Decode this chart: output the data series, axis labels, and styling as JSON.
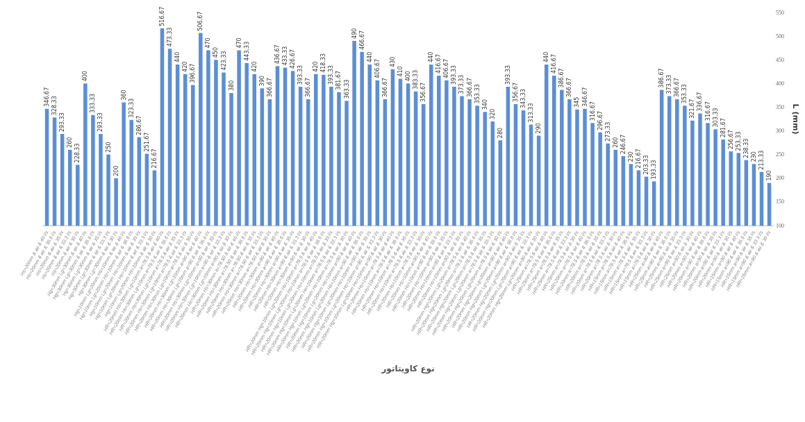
{
  "chart_data": {
    "type": "bar",
    "xlabel": "نوع کاویتاتور",
    "ylabel": "L (mm)",
    "color": "#5b8ed6",
    "ylim": [
      100,
      550
    ],
    "yticks": [
      100,
      150,
      200,
      250,
      300,
      350,
      400,
      450,
      500,
      550
    ],
    "grid": false,
    "data_labels": true,
    "categories": [
      "Hs=20mm & air & 40 l/s",
      "Hs=20mm & air & 36.6 l/s",
      "Hs=20mm & air & 35 l/s",
      "Hs=20mm & air & 33.3 l/s",
      "Hs=20mm & air & 30 l/s",
      "Hg=30mm Lg=30mm & air & 40 l/s",
      "Hg=30mm Lg=30mm & air & 36.6 l/s",
      "Hg=30mm Lg=30mm & air & 35 l/s",
      "Hg=30mm Lg=30mm & air & 33.3 l/s",
      "Hg=30mm Lg=30mm & air & 30 l/s",
      "Hg=10mm Lg=20mm Hs=10mm & air & 40 l/s",
      "Hg=10mm Lg=20mm Hs=10mm & air & 36.6 l/s",
      "Hg=10mm Lg=20mm Hs=10mm & air & 35 l/s",
      "Hg=10mm Lg=20mm Hs=10mm & air & 33.3 l/s",
      "Hg=10mm Lg=20mm Hs=10mm & air & 30 l/s",
      "HR=20mm Hs=30mm Lg=10mm a=78.5 & air & 40 l/s",
      "HR=20mm Hs=30mm Lg=10mm a=78.5 & air & 36.6 l/s",
      "HR=20mm Hs=30mm Lg=10mm a=78.5 & air & 35 l/s",
      "HR=20mm Hs=30mm Lg=10mm a=78.5 & air & 33.3 l/s",
      "HR=20mm Hs=30mm Lg=10mm a=78.5 & air & 30 l/s",
      "HR=20mm Hs=30mm Lg=10mm a=90 & air & 40 l/s",
      "HR=20mm Hs=30mm Lg=10mm a=90 & air & 36.6 l/s",
      "HR=20mm Hs=30mm Lg=10mm a=90 & air & 35 l/s",
      "HR=20mm Hs=30mm Lg=10mm a=90 & air & 33.3 l/s",
      "HR=20mm Hs=30mm Lg=10mm a=90 & air & 30 l/s",
      "HR=20mm Hs=30mm a=78.50 & air & 40 l/s",
      "HR=20mm Hs=30mm a=78.50 & air & 36.6 l/s",
      "HR=20mm Hs=30mm a=78.50 & air & 35 l/s",
      "HR=20mm Hs=30mm a=78.50 & air & 33.3 l/s",
      "HR=20mm Hs=30mm a=78.50 & air & 30 l/s",
      "HR=20mm Hs=30mm a=90 & air & 40 l/s",
      "HR=20mm Hs=30mm a=90 & air & 36.6 l/s",
      "HR=20mm Hs=30mm a=90 & air & 35 l/s",
      "HR=20mm Hs=30mm a=90 & air & 33.3 l/s",
      "HR=20mm Hs=30mm a=90 & air & 30 l/s",
      "HR=20mm Hg=10mm Lg=20mm Hs=10mm a=78.5 & air & 40 l/s",
      "HR=20mm Hg=10mm Lg=20mm Hs=10mm a=78.5 & air & 36.6 l/s",
      "HR=20mm Hg=10mm Lg=20mm Hs=10mm a=78.5 & air & 35 l/s",
      "HR=20mm Hg=10mm Lg=20mm Hs=10mm a=78.5 & air & 33.3 l/s",
      "HR=20mm Hg=10mm Lg=20mm Hs=10mm a=78.5 & air & 30 l/s",
      "HR=20mm Hg=10mm Lg=20mm Hs=10mm a=90 & air & 40 l/s",
      "HR=20mm Hg=10mm Lg=20mm Hs=10mm a=90 & air & 36.6 l/s",
      "HR=20mm Hg=10mm Lg=20mm Hs=10mm a=90 & air & 35 l/s",
      "HR=20mm Hg=10mm Lg=20mm Hs=10mm a=90 & air & 33.3 l/s",
      "HR=20mm Hg=10mm Lg=20mm Hs=10mm a=90 & air & 30 l/s",
      "HR=20mm Hs=10mm a=78.5 & air & 40 l/s",
      "HR=20mm Hs=10mm a=78.5 & air & 36.6 l/s",
      "HR=20mm Hs=10mm a=78.5 & air & 35 l/s",
      "HR=20mm Hs=10mm a=78.5 & air & 33.3 l/s",
      "HR=20mm Hs=10mm a=78.5 & air & 30 l/s",
      "HR=20mm Hs=10mm a=90 & air & 40 l/s",
      "HR=20mm Hs=10mm a=90 & air & 36.6 l/s",
      "HR=20mm Hs=10mm a=90 & air & 35 l/s",
      "HR=20mm Hs=10mm a=90 & air & 33.3 l/s",
      "HR=20mm Hs=10mm a=90 & air & 30 l/s",
      "HR=20mm Hg=20mm Lg=20mm a=78.5 & air & 40 l/s",
      "HR=20mm Hg=20mm Lg=20mm a=78.5 & air & 36.6 l/s",
      "HR=20mm Hg=20mm Lg=20mm a=78.5 & air & 35 l/s",
      "HR=20mm Hg=20mm Lg=20mm a=78.5 & air & 33.3 l/s",
      "HR=20mm Hg=20mm Lg=20mm a=78.5 & air & 30 l/s",
      "HR=20mm Hg=20mm Lg=20mm a=90 & air & 40 l/s",
      "HR=20mm Hg=20mm Lg=20mm a=90 & air & 36.6 l/s",
      "HR=20mm Hg=20mm Lg=20mm a=90 & air & 35 l/s",
      "HR=20mm Hg=20mm Lg=20mm a=90 & air & 33.3 l/s",
      "HR=20mm Hg=20mm Lg=20mm a=90 & air & 30 l/s",
      "HR=25mm a=78.5 & air & 40 l/s",
      "HR=25mm a=78.5 & air & 36.6 l/s",
      "HR=25mm a=78.5 & air & 35 l/s",
      "HR=25mm a=78.5 & air & 33.3 l/s",
      "HR=25mm a=78.5 & air & 30 l/s",
      "HR=20mm a=78.5 & air & 40 l/s",
      "HR=20mm a=78.5 & air & 36.6 l/s",
      "HR=20mm a=78.5 & air & 35 l/s",
      "HR=20mm a=78.5 & air & 33.3 l/s",
      "HR=20mm a=78.5 & air & 30 l/s",
      "HR=15mm a=78.5 & air & 40 l/s",
      "HR=15mm a=78.5 & air & 36.6 l/s",
      "HR=15mm a=78.5 & air & 35 l/s",
      "HR=15mm a=78.5 & air & 33.3 l/s",
      "HR=15mm a=78.5 & air & 30 l/s",
      "HR=25mm a=90 & air & 40 l/s",
      "HR=25mm a=90 & air & 36.6 l/s",
      "HR=25mm a=90 & air & 35 l/s",
      "HR=25mm a=90 & air & 33.3 l/s",
      "HR=25mm a=90 & air & 30 l/s",
      "HR=20mm a=90 & air & 40 l/s",
      "HR=20mm a=90 & air & 36.6 l/s",
      "HR=20mm a=90 & air & 35 l/s",
      "HR=20mm a=90 & air & 33.3 l/s",
      "HR=20mm a=90 & air & 30 l/s",
      "HR=15mm a=90 & air & 40 l/s",
      "HR=15mm a=90 & air & 36.6 l/s",
      "HR=15mm a=90 & air & 35 l/s",
      "HR=15mm a=90 & air & 33.3 l/s",
      "HR=15mm a=90 & air & 30 l/s"
    ],
    "values": [
      346.67,
      328.33,
      293.33,
      260,
      228.33,
      400,
      333.33,
      293.33,
      250,
      200,
      360,
      323.33,
      286.67,
      251.67,
      216.67,
      516.67,
      473.33,
      440,
      420,
      396.67,
      506.67,
      470,
      450,
      423.33,
      380,
      470,
      443.33,
      420,
      390,
      366.67,
      436.67,
      433.33,
      426.67,
      393.33,
      366.67,
      420,
      418.33,
      393.33,
      381.67,
      363.33,
      490,
      466.67,
      440,
      406.67,
      366.67,
      430,
      410,
      400,
      383.33,
      356.67,
      440,
      416.67,
      406.67,
      393.33,
      373.33,
      366.67,
      353.33,
      340,
      320,
      280,
      393.33,
      356.67,
      343.33,
      313.33,
      290,
      440,
      416.67,
      386.67,
      366.67,
      345,
      346.67,
      316.67,
      296.67,
      273.33,
      260,
      246.67,
      230,
      216.67,
      203.33,
      193.33,
      386.67,
      373.33,
      366.67,
      353.33,
      321.67,
      336.67,
      316.67,
      303.33,
      281.67,
      256.67,
      253.33,
      238.33,
      230,
      213.33,
      190
    ]
  }
}
